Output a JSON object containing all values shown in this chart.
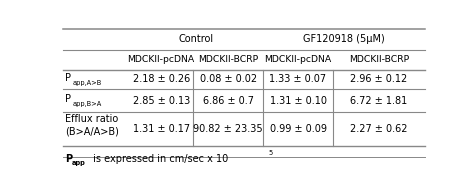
{
  "col_headers_row1_control": "Control",
  "col_headers_row1_gf": "GF120918 (5μM)",
  "col_headers_row2": [
    "MDCKII-pcDNA",
    "MDCKII-BCRP",
    "MDCKII-pcDNA",
    "MDCKII-BCRP"
  ],
  "row_label_0_main": "P",
  "row_label_0_sub": "app,A>B",
  "row_label_1_main": "P",
  "row_label_1_sub": "app,B>A",
  "row_label_2_line1": "Efflux ratio",
  "row_label_2_line2": "(B>A/A>B)",
  "data": [
    [
      "2.18 ± 0.26",
      "0.08 ± 0.02",
      "1.33 ± 0.07",
      "2.96 ± 0.12"
    ],
    [
      "2.85 ± 0.13",
      "6.86 ± 0.7",
      "1.31 ± 0.10",
      "6.72 ± 1.81"
    ],
    [
      "1.31 ± 0.17",
      "90.82 ± 23.35",
      "0.99 ± 0.09",
      "2.27 ± 0.62"
    ]
  ],
  "footnote_p": "P",
  "footnote_sub": "app",
  "footnote_rest": " is expressed in cm/sec x 10",
  "footnote_sup": "5",
  "background_color": "#ffffff",
  "text_color": "#000000",
  "font_size": 7.0,
  "line_color": "#888888"
}
